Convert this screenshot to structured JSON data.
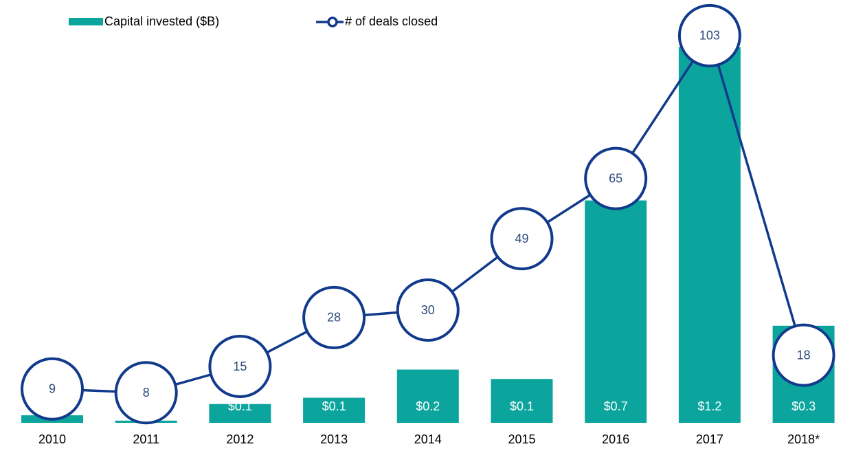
{
  "chart_data": {
    "type": "bar",
    "categories": [
      "2010",
      "2011",
      "2012",
      "2013",
      "2014",
      "2015",
      "2016",
      "2017",
      "2018*"
    ],
    "series": [
      {
        "name": "Capital invested ($B)",
        "type": "bar",
        "color": "#0ba59e",
        "axis": "y",
        "values": [
          0.024,
          0.007,
          0.06,
          0.08,
          0.17,
          0.14,
          0.71,
          1.2,
          0.31
        ],
        "value_labels": [
          null,
          null,
          "$0.1",
          "$0.1",
          "$0.2",
          "$0.1",
          "$0.7",
          "$1.2",
          "$0.3"
        ]
      },
      {
        "name": "# of deals closed",
        "type": "line",
        "color": "#123a8c",
        "axis": "y2",
        "values": [
          9,
          8,
          15,
          28,
          30,
          49,
          65,
          103,
          18
        ]
      }
    ],
    "ylim": [
      0,
      1.35
    ],
    "y2lim": [
      0,
      112.5
    ],
    "legend": "top-left"
  }
}
